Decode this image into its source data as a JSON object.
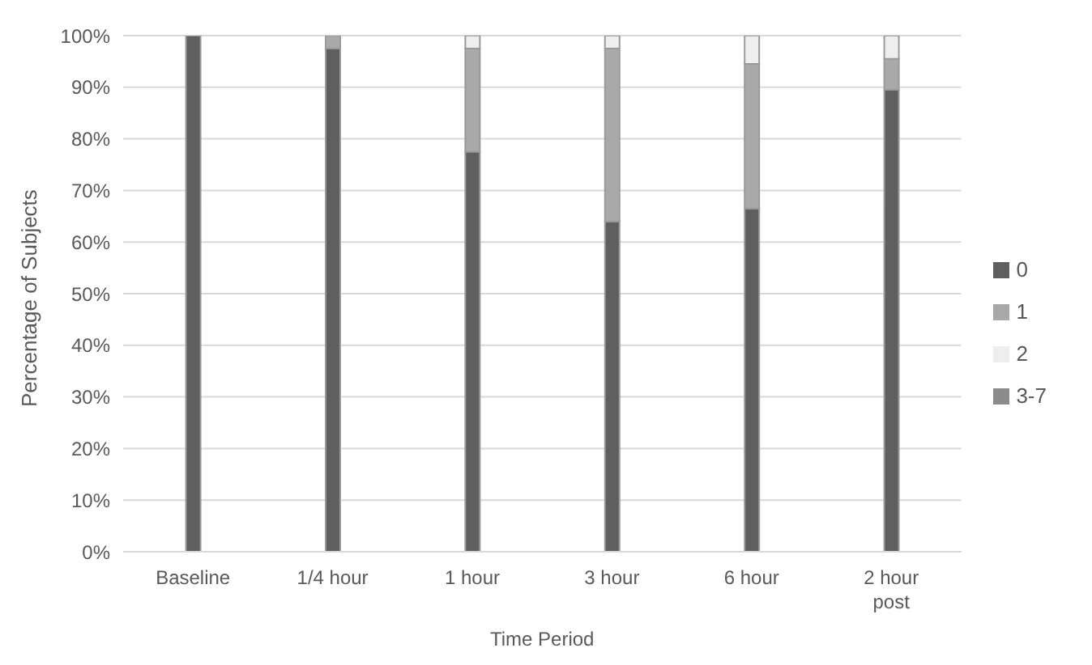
{
  "chart_data": {
    "type": "bar",
    "stacked": true,
    "xlabel": "Time Period",
    "ylabel": "Percentage of Subjects",
    "categories": [
      "Baseline",
      "1/4 hour",
      "1 hour",
      "3 hour",
      "6 hour",
      "2 hour post"
    ],
    "series": [
      {
        "name": "0",
        "color": "#5f5f5f",
        "values": [
          100,
          97.5,
          77.5,
          64,
          66.5,
          89.5
        ]
      },
      {
        "name": "1",
        "color": "#a9a9a9",
        "values": [
          0,
          2.5,
          20,
          33.5,
          28,
          6
        ]
      },
      {
        "name": "2",
        "color": "#eeeeee",
        "values": [
          0,
          0,
          2.5,
          2.5,
          5.5,
          4.5
        ]
      },
      {
        "name": "3-7",
        "color": "#8c8c8c",
        "values": [
          0,
          0,
          0,
          0,
          0,
          0
        ]
      }
    ],
    "ylim": [
      0,
      100
    ],
    "yticks": [
      {
        "value": 0,
        "label": "0%"
      },
      {
        "value": 10,
        "label": "10%"
      },
      {
        "value": 20,
        "label": "20%"
      },
      {
        "value": 30,
        "label": "30%"
      },
      {
        "value": 40,
        "label": "40%"
      },
      {
        "value": 50,
        "label": "50%"
      },
      {
        "value": 60,
        "label": "60%"
      },
      {
        "value": 70,
        "label": "70%"
      },
      {
        "value": 80,
        "label": "80%"
      },
      {
        "value": 90,
        "label": "90%"
      },
      {
        "value": 100,
        "label": "100%"
      }
    ],
    "grid": "y",
    "legend": "right"
  }
}
